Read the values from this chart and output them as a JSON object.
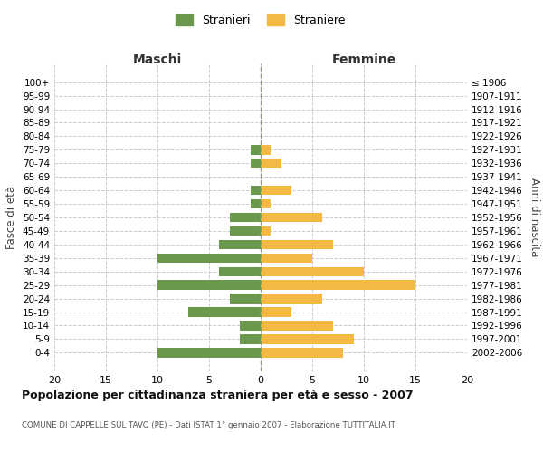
{
  "age_groups": [
    "100+",
    "95-99",
    "90-94",
    "85-89",
    "80-84",
    "75-79",
    "70-74",
    "65-69",
    "60-64",
    "55-59",
    "50-54",
    "45-49",
    "40-44",
    "35-39",
    "30-34",
    "25-29",
    "20-24",
    "15-19",
    "10-14",
    "5-9",
    "0-4"
  ],
  "birth_years": [
    "≤ 1906",
    "1907-1911",
    "1912-1916",
    "1917-1921",
    "1922-1926",
    "1927-1931",
    "1932-1936",
    "1937-1941",
    "1942-1946",
    "1947-1951",
    "1952-1956",
    "1957-1961",
    "1962-1966",
    "1967-1971",
    "1972-1976",
    "1977-1981",
    "1982-1986",
    "1987-1991",
    "1992-1996",
    "1997-2001",
    "2002-2006"
  ],
  "maschi": [
    0,
    0,
    0,
    0,
    0,
    1,
    1,
    0,
    1,
    1,
    3,
    3,
    4,
    10,
    4,
    10,
    3,
    7,
    2,
    2,
    10
  ],
  "femmine": [
    0,
    0,
    0,
    0,
    0,
    1,
    2,
    0,
    3,
    1,
    6,
    1,
    7,
    5,
    10,
    15,
    6,
    3,
    7,
    9,
    8
  ],
  "maschi_color": "#6a994e",
  "femmine_color": "#f4b942",
  "background_color": "#ffffff",
  "grid_color": "#cccccc",
  "title": "Popolazione per cittadinanza straniera per età e sesso - 2007",
  "subtitle": "COMUNE DI CAPPELLE SUL TAVO (PE) - Dati ISTAT 1° gennaio 2007 - Elaborazione TUTTITALIA.IT",
  "xlabel_left": "Maschi",
  "xlabel_right": "Femmine",
  "ylabel_left": "Fasce di età",
  "ylabel_right": "Anni di nascita",
  "legend_maschi": "Stranieri",
  "legend_femmine": "Straniere",
  "xlim": 20
}
